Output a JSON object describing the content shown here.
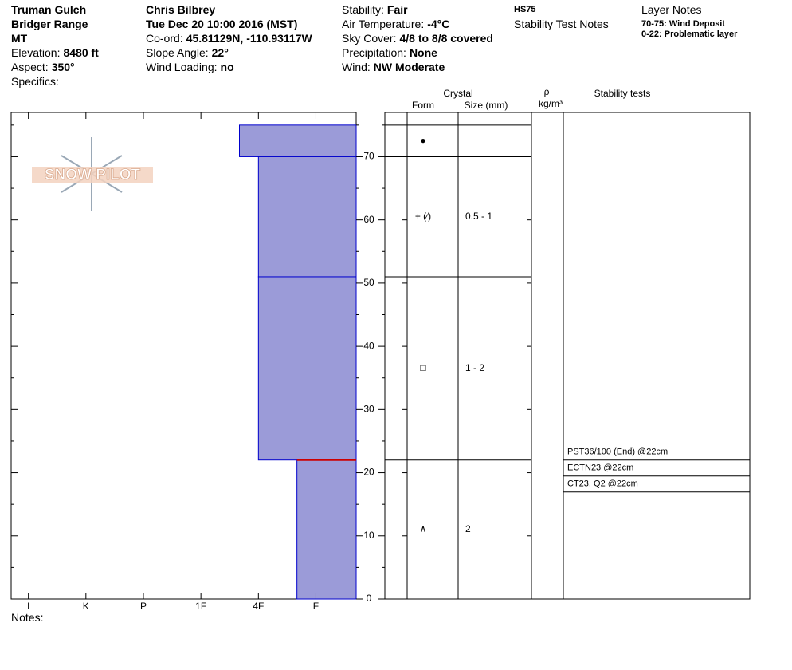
{
  "header": {
    "location": "Truman Gulch",
    "range": "Bridger Range",
    "state": "MT",
    "elevation_label": "Elevation:",
    "elevation": "8480 ft",
    "aspect_label": "Aspect:",
    "aspect": "350°",
    "specifics_label": "Specifics:",
    "observer": "Chris Bilbrey",
    "datetime": "Tue Dec 20 10:00 2016 (MST)",
    "coord_label": "Co-ord:",
    "coord": "45.81129N, -110.93117W",
    "slope_label": "Slope Angle:",
    "slope": "22°",
    "wind_loading_label": "Wind Loading:",
    "wind_loading": "no",
    "stability_label": "Stability:",
    "stability": "Fair",
    "air_temp_label": "Air Temperature:",
    "air_temp": "-4°C",
    "sky_label": "Sky Cover:",
    "sky": "4/8 to 8/8 covered",
    "precip_label": "Precipitation:",
    "precip": "None",
    "wind_label": "Wind:",
    "wind": "NW Moderate",
    "hs": "HS75",
    "stability_notes_title": "Stability Test Notes",
    "layer_notes_title": "Layer Notes",
    "layer_notes": [
      "70-75: Wind Deposit",
      "0-22: Problematic layer"
    ]
  },
  "logo_text": "SNOW PILOT",
  "chart_data": {
    "type": "snow-profile",
    "ylim": [
      0,
      77
    ],
    "yticks": [
      0,
      10,
      20,
      30,
      40,
      50,
      60,
      70
    ],
    "minor_yticks": [
      5,
      15,
      25,
      35,
      45,
      55,
      65,
      75
    ],
    "xlim": [
      6.3,
      0.3
    ],
    "xticks": [
      {
        "value": 6,
        "label": "I"
      },
      {
        "value": 5,
        "label": "K"
      },
      {
        "value": 4,
        "label": "P"
      },
      {
        "value": 3,
        "label": "1F"
      },
      {
        "value": 2,
        "label": "4F"
      },
      {
        "value": 1,
        "label": "F"
      }
    ],
    "color": "#9b9bd8",
    "edge_color": "#0000cc",
    "problem_color": "#cc0000",
    "layers": [
      {
        "bottom": 70,
        "top": 75,
        "hardness": 2.33,
        "form": "●"
      },
      {
        "bottom": 51,
        "top": 70,
        "hardness": 2,
        "form": "+ (⁄)",
        "size": "0.5 - 1"
      },
      {
        "bottom": 22,
        "top": 51,
        "hardness": 2,
        "form": "□",
        "size": "1 - 2"
      },
      {
        "bottom": 0,
        "top": 22,
        "hardness": 1.33,
        "form": "∧",
        "size": "2",
        "problematic": true
      }
    ]
  },
  "table": {
    "crystal": "Crystal",
    "form": "Form",
    "size": "Size (mm)",
    "rho": "ρ",
    "density_unit": "kg/m³",
    "stability_tests": "Stability tests"
  },
  "stability_tests": [
    {
      "depth": 22,
      "text": "PST36/100 (End) @22cm"
    },
    {
      "depth": 22,
      "text": "ECTN23 @22cm"
    },
    {
      "depth": 22,
      "text": "CT23, Q2 @22cm"
    }
  ],
  "notes_label": "Notes:"
}
